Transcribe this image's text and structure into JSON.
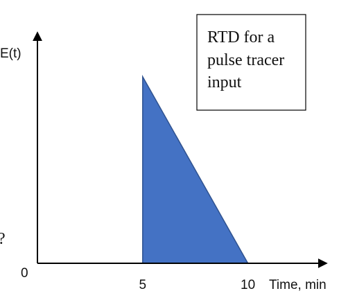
{
  "chart_data": {
    "type": "area",
    "title": "",
    "annotation_lines": [
      "RTD for a",
      "pulse tracer",
      "input"
    ],
    "ylabel": "E(t)",
    "xlabel": "Time, min",
    "origin_label": "0",
    "x_ticks": [
      {
        "value": 5,
        "label": "5"
      },
      {
        "value": 10,
        "label": "10"
      }
    ],
    "xlim": [
      0,
      13.7
    ],
    "ylim": [
      0,
      1.0
    ],
    "series": [
      {
        "points": [
          {
            "x": 5,
            "y": 0
          },
          {
            "x": 5,
            "y": 0.99
          },
          {
            "x": 10,
            "y": 0
          }
        ]
      }
    ],
    "fill_color": "#4472c4",
    "edge_color": "#2f528f",
    "grid": false,
    "cropped_left_glyph": "?"
  }
}
